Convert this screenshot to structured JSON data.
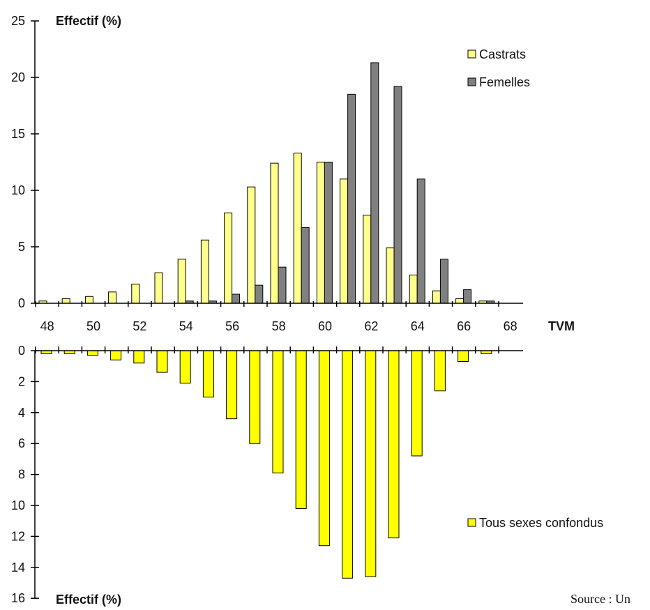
{
  "chart_data": [
    {
      "type": "bar",
      "panel": "top",
      "ylabel": "Effectif (%)",
      "xlabel": "TVM",
      "ylim": [
        0,
        25
      ],
      "yticks": [
        0,
        5,
        10,
        15,
        20,
        25
      ],
      "xticks": [
        48,
        50,
        52,
        54,
        56,
        58,
        60,
        62,
        64,
        66,
        68
      ],
      "categories": [
        48,
        49,
        50,
        51,
        52,
        53,
        54,
        55,
        56,
        57,
        58,
        59,
        60,
        61,
        62,
        63,
        64,
        65,
        66,
        67
      ],
      "series": [
        {
          "name": "Castrats",
          "color": "#ffff8c",
          "values": [
            0.2,
            0.4,
            0.6,
            1.0,
            1.7,
            2.7,
            3.9,
            5.6,
            8.0,
            10.3,
            12.4,
            13.3,
            12.5,
            11.0,
            7.8,
            4.9,
            2.5,
            1.1,
            0.4,
            0.2
          ]
        },
        {
          "name": "Femelles",
          "color": "#808080",
          "values": [
            0,
            0,
            0,
            0,
            0,
            0,
            0.2,
            0.2,
            0.8,
            1.6,
            3.2,
            6.7,
            12.5,
            18.5,
            21.3,
            19.2,
            11.0,
            3.9,
            1.2,
            0.2
          ]
        }
      ],
      "legend_position": "top-right"
    },
    {
      "type": "bar",
      "panel": "bottom",
      "ylabel": "Effectif (%)",
      "ylim": [
        0,
        16
      ],
      "yticks": [
        0,
        2,
        4,
        6,
        8,
        10,
        12,
        14,
        16
      ],
      "inverted": true,
      "categories": [
        48,
        49,
        50,
        51,
        52,
        53,
        54,
        55,
        56,
        57,
        58,
        59,
        60,
        61,
        62,
        63,
        64,
        65,
        66,
        67
      ],
      "series": [
        {
          "name": "Tous sexes confondus",
          "color": "#ffff00",
          "values": [
            0.2,
            0.2,
            0.3,
            0.6,
            0.8,
            1.4,
            2.1,
            3.0,
            4.4,
            6.0,
            7.9,
            10.2,
            12.6,
            14.7,
            14.6,
            12.1,
            6.8,
            2.6,
            0.7,
            0.2
          ]
        }
      ],
      "legend_position": "right"
    }
  ],
  "source_text": "Source : Un"
}
